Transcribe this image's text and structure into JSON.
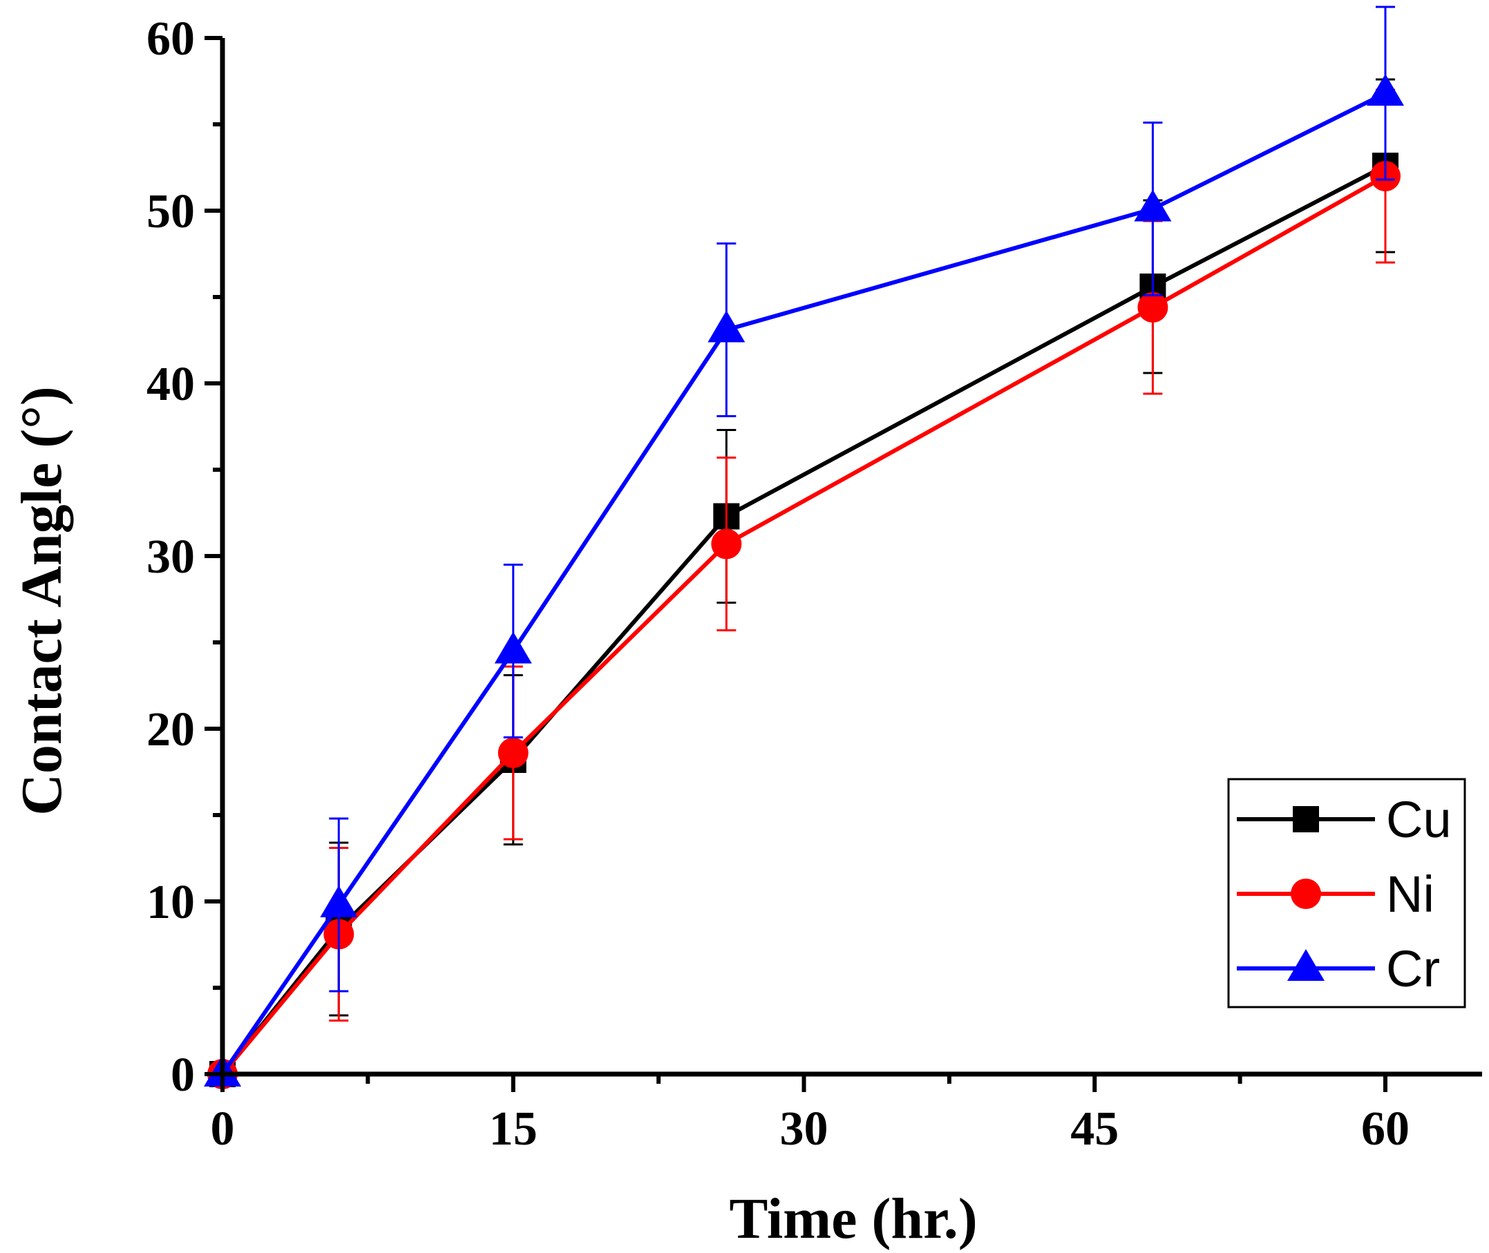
{
  "chart_data": {
    "type": "line",
    "title": "",
    "xlabel": "Time (hr.)",
    "ylabel": "Contact Angle (°)",
    "xlim": [
      0,
      65
    ],
    "ylim": [
      0,
      60
    ],
    "x_ticks": [
      0,
      15,
      30,
      45,
      60
    ],
    "y_ticks": [
      0,
      10,
      20,
      30,
      40,
      50,
      60
    ],
    "x_tick_labels": [
      "0",
      "15",
      "30",
      "45",
      "60"
    ],
    "y_tick_labels": [
      "0",
      "10",
      "20",
      "30",
      "40",
      "50",
      "60"
    ],
    "legend_position": "bottom-right",
    "series": [
      {
        "name": "Cu",
        "color": "#000000",
        "marker": "square",
        "x": [
          0,
          6,
          15,
          26,
          48,
          60
        ],
        "y": [
          0,
          8.4,
          18.2,
          32.3,
          45.6,
          52.6
        ],
        "err": [
          0,
          5.0,
          4.9,
          5.0,
          5.0,
          5.0
        ]
      },
      {
        "name": "Ni",
        "color": "#ff0000",
        "marker": "circle",
        "x": [
          0,
          6,
          15,
          26,
          48,
          60
        ],
        "y": [
          0,
          8.1,
          18.6,
          30.7,
          44.4,
          52.0
        ],
        "err": [
          0,
          5.0,
          5.0,
          5.0,
          5.0,
          5.0
        ]
      },
      {
        "name": "Cr",
        "color": "#0000ff",
        "marker": "triangle",
        "x": [
          0,
          6,
          15,
          26,
          48,
          60
        ],
        "y": [
          0,
          9.8,
          24.5,
          43.1,
          50.1,
          56.8
        ],
        "err": [
          0,
          5.0,
          5.0,
          5.0,
          5.0,
          5.0
        ]
      }
    ]
  }
}
